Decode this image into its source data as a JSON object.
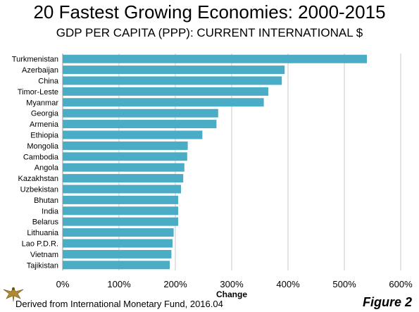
{
  "header": {
    "title": "20 Fastest Growing Economies: 2000-2015",
    "subtitle": "GDP PER CAPITA (PPP): CURRENT INTERNATIONAL $"
  },
  "footer": {
    "source": "Derived from International Monetary Fund, 2016.04",
    "figure": "Figure 2"
  },
  "chart_data": {
    "type": "bar",
    "orientation": "horizontal",
    "title": "20 Fastest Growing Economies: 2000-2015",
    "subtitle": "GDP PER CAPITA (PPP): CURRENT INTERNATIONAL $",
    "xlabel": "Change",
    "ylabel": "",
    "xlim": [
      0,
      600
    ],
    "ticks": [
      "0%",
      "100%",
      "200%",
      "300%",
      "400%",
      "500%",
      "600%"
    ],
    "grid": true,
    "bar_color": "#4bacc6",
    "categories": [
      "Turkmenistan",
      "Azerbaijan",
      "China",
      "Timor-Leste",
      "Myanmar",
      "Georgia",
      "Armenia",
      "Ethiopia",
      "Mongolia",
      "Cambodia",
      "Angola",
      "Kazakhstan",
      "Uzbekistan",
      "Bhutan",
      "India",
      "Belarus",
      "Lithuania",
      "Lao P.D.R.",
      "Vietnam",
      "Tajikistan"
    ],
    "values": [
      540,
      394,
      389,
      365,
      357,
      276,
      273,
      248,
      222,
      221,
      216,
      214,
      210,
      205,
      205,
      205,
      197,
      195,
      193,
      190
    ]
  }
}
